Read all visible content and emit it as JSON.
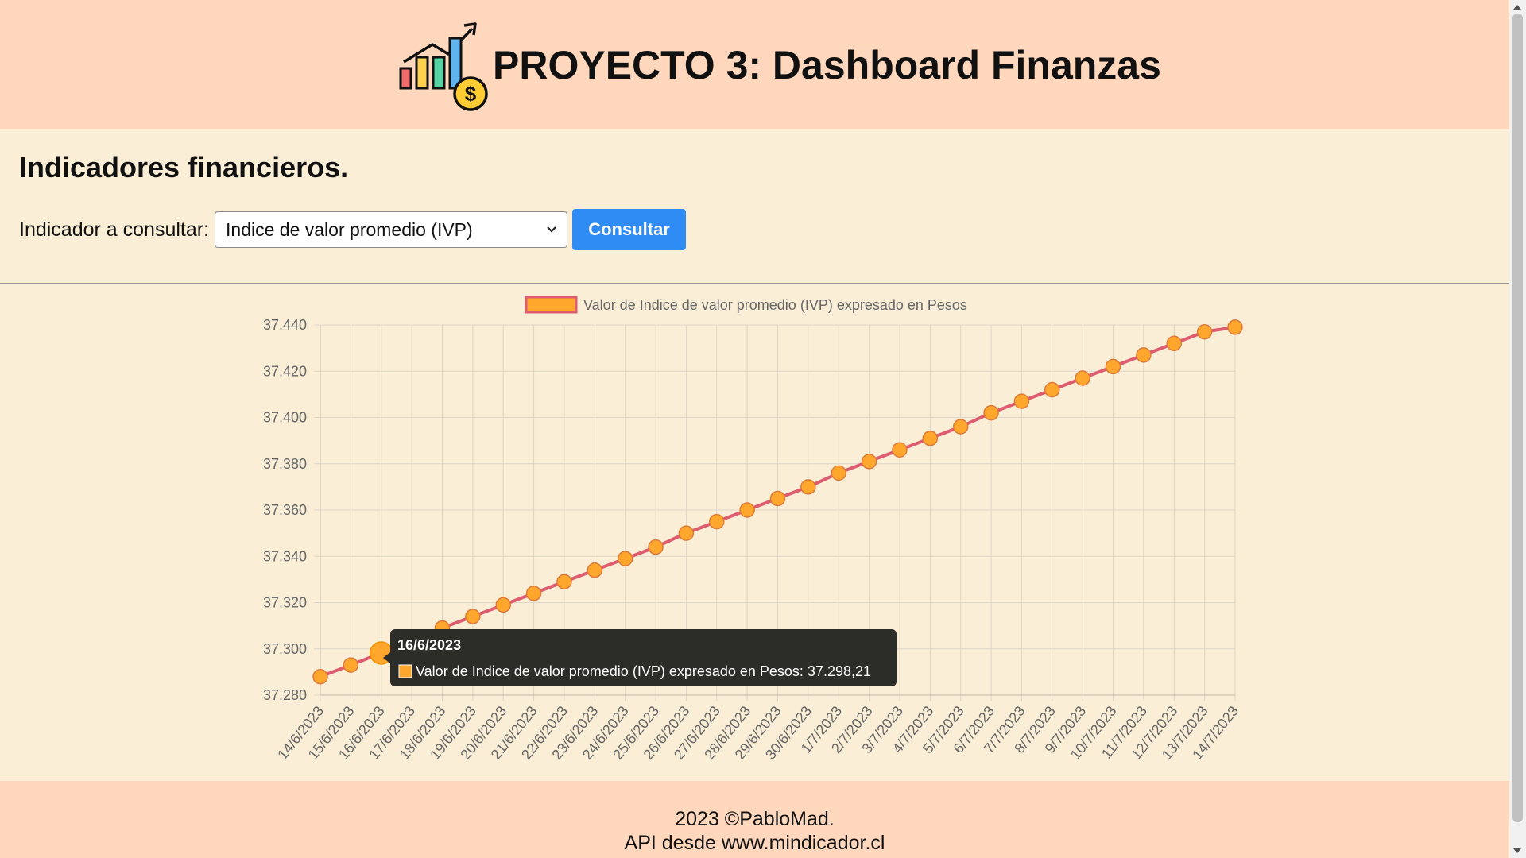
{
  "header": {
    "title": "PROYECTO 3: Dashboard Finanzas",
    "logo_icon": "finance-chart-dollar-icon"
  },
  "main": {
    "heading": "Indicadores financieros.",
    "form": {
      "label": "Indicador a consultar:",
      "selected": "Indice de valor promedio (IVP)",
      "button": "Consultar"
    }
  },
  "colors": {
    "header_bg": "#fed7bc",
    "page_bg": "#fbeed6",
    "button_bg": "#2f8cf4",
    "line": "#de5c6f",
    "point_fill": "#ffa72c",
    "tooltip_bg": "#2c2c28"
  },
  "chart_data": {
    "type": "line",
    "legend": "Valor de Indice de valor promedio (IVP) expresado en Pesos",
    "legend_position": "top",
    "grid": true,
    "categories": [
      "14/6/2023",
      "15/6/2023",
      "16/6/2023",
      "17/6/2023",
      "18/6/2023",
      "19/6/2023",
      "20/6/2023",
      "21/6/2023",
      "22/6/2023",
      "23/6/2023",
      "24/6/2023",
      "25/6/2023",
      "26/6/2023",
      "27/6/2023",
      "28/6/2023",
      "29/6/2023",
      "30/6/2023",
      "1/7/2023",
      "2/7/2023",
      "3/7/2023",
      "4/7/2023",
      "5/7/2023",
      "6/7/2023",
      "7/7/2023",
      "8/7/2023",
      "9/7/2023",
      "10/7/2023",
      "11/7/2023",
      "12/7/2023",
      "13/7/2023",
      "14/7/2023"
    ],
    "series": [
      {
        "name": "Valor de Indice de valor promedio (IVP) expresado en Pesos",
        "values": [
          37288,
          37293,
          37298.21,
          37304,
          37309,
          37314,
          37319,
          37324,
          37329,
          37334,
          37339,
          37344,
          37350,
          37355,
          37360,
          37365,
          37370,
          37376,
          37381,
          37386,
          37391,
          37396,
          37402,
          37407,
          37412,
          37417,
          37422,
          37427,
          37432,
          37437,
          37439
        ]
      }
    ],
    "yticks": [
      "37.280",
      "37.300",
      "37.320",
      "37.340",
      "37.360",
      "37.380",
      "37.400",
      "37.420",
      "37.440"
    ],
    "ylim": [
      37280,
      37440
    ],
    "tooltip": {
      "title": "16/6/2023",
      "label": "Valor de Indice de valor promedio (IVP) expresado en Pesos: 37.298,21",
      "active_index": 2
    }
  },
  "footer": {
    "line1": "2023 ©PabloMad.",
    "line2": "API desde www.mindicador.cl"
  }
}
